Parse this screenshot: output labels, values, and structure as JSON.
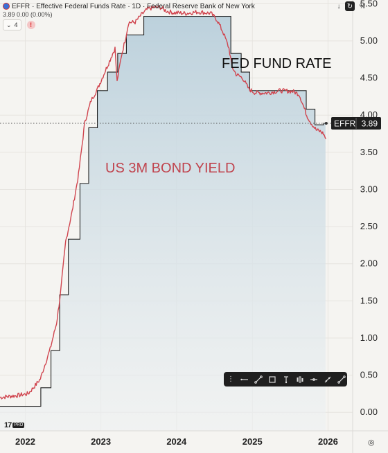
{
  "header": {
    "symbol": "EFFR",
    "title": "· Effective Federal Funds Rate · 1D · Federal Reserve Bank of New York",
    "price_line": "3.89  0.00 (0.00%)",
    "indicator_count": "4",
    "warning": "!"
  },
  "toolbar": {
    "download_icon": "download-icon",
    "reload_icon": "reload-icon",
    "percent": "%"
  },
  "annotations": {
    "fed_fund_rate": "FED FUND RATE",
    "bond_yield": "US 3M BOND YIELD"
  },
  "price_tag": {
    "symbol": "EFFR",
    "value": "3.89"
  },
  "drawing_toolbar": {
    "tools": [
      "drag-handle-icon",
      "horizontal-line-icon",
      "trend-line-icon",
      "rectangle-icon",
      "text-icon",
      "candles-icon",
      "ray-icon",
      "measure-icon",
      "ruler-icon"
    ]
  },
  "colors": {
    "background": "#f5f4f1",
    "step_line": "#1f1f1f",
    "bond_line": "#d0444e",
    "area_top": "#b9cfdb",
    "area_bottom": "#edf0f1",
    "grid": "#e6e4e0",
    "tag_bg": "#1f1f1f"
  },
  "chart_data": {
    "type": "line",
    "y_axis_side": "right",
    "ylim": [
      -0.25,
      5.55
    ],
    "yticks": [
      "5.50",
      "5.00",
      "4.50",
      "4.00",
      "3.50",
      "3.00",
      "2.50",
      "2.00",
      "1.50",
      "1.00",
      "0.50",
      "0.00"
    ],
    "xlim": [
      "2021-09-01",
      "2026-04-30"
    ],
    "xticks": [
      "2022",
      "2023",
      "2024",
      "2025",
      "2026"
    ],
    "grid": true,
    "current_value": 3.89,
    "series": [
      {
        "name": "EFFR",
        "type": "step-area",
        "points": [
          [
            "2021-09-01",
            0.08
          ],
          [
            "2022-03-17",
            0.33
          ],
          [
            "2022-05-05",
            0.83
          ],
          [
            "2022-06-16",
            1.58
          ],
          [
            "2022-07-28",
            2.33
          ],
          [
            "2022-09-22",
            3.08
          ],
          [
            "2022-11-03",
            3.83
          ],
          [
            "2022-12-15",
            4.33
          ],
          [
            "2023-02-02",
            4.58
          ],
          [
            "2023-03-23",
            4.83
          ],
          [
            "2023-05-04",
            5.08
          ],
          [
            "2023-07-27",
            5.33
          ],
          [
            "2024-09-19",
            4.83
          ],
          [
            "2024-11-08",
            4.58
          ],
          [
            "2024-12-19",
            4.33
          ],
          [
            "2025-09-18",
            4.08
          ],
          [
            "2025-10-30",
            3.87
          ],
          [
            "2025-12-11",
            3.89
          ],
          [
            "2025-12-20",
            3.89
          ]
        ]
      },
      {
        "name": "US 3M bond yield",
        "type": "line",
        "points": [
          [
            "2021-09-01",
            0.2
          ],
          [
            "2021-12-01",
            0.23
          ],
          [
            "2022-01-15",
            0.25
          ],
          [
            "2022-02-15",
            0.35
          ],
          [
            "2022-03-15",
            0.45
          ],
          [
            "2022-04-01",
            0.6
          ],
          [
            "2022-05-01",
            0.85
          ],
          [
            "2022-06-01",
            1.2
          ],
          [
            "2022-06-20",
            1.6
          ],
          [
            "2022-07-15",
            2.3
          ],
          [
            "2022-08-15",
            2.7
          ],
          [
            "2022-09-15",
            3.2
          ],
          [
            "2022-10-15",
            3.9
          ],
          [
            "2022-11-15",
            4.2
          ],
          [
            "2022-12-15",
            4.35
          ],
          [
            "2023-01-15",
            4.55
          ],
          [
            "2023-02-15",
            4.75
          ],
          [
            "2023-03-10",
            4.9
          ],
          [
            "2023-03-20",
            4.45
          ],
          [
            "2023-04-10",
            4.8
          ],
          [
            "2023-05-01",
            5.05
          ],
          [
            "2023-05-15",
            5.25
          ],
          [
            "2023-06-15",
            5.25
          ],
          [
            "2023-07-15",
            5.35
          ],
          [
            "2023-08-15",
            5.43
          ],
          [
            "2023-09-15",
            5.45
          ],
          [
            "2023-10-15",
            5.45
          ],
          [
            "2023-11-15",
            5.4
          ],
          [
            "2023-12-15",
            5.38
          ],
          [
            "2024-02-15",
            5.37
          ],
          [
            "2024-04-15",
            5.39
          ],
          [
            "2024-06-15",
            5.37
          ],
          [
            "2024-07-15",
            5.28
          ],
          [
            "2024-08-15",
            5.1
          ],
          [
            "2024-09-10",
            4.9
          ],
          [
            "2024-09-25",
            4.65
          ],
          [
            "2024-10-15",
            4.55
          ],
          [
            "2024-11-15",
            4.5
          ],
          [
            "2024-12-15",
            4.35
          ],
          [
            "2025-01-15",
            4.3
          ],
          [
            "2025-03-15",
            4.3
          ],
          [
            "2025-05-15",
            4.33
          ],
          [
            "2025-07-15",
            4.32
          ],
          [
            "2025-08-15",
            4.28
          ],
          [
            "2025-09-01",
            4.15
          ],
          [
            "2025-09-20",
            4.0
          ],
          [
            "2025-10-10",
            3.9
          ],
          [
            "2025-11-05",
            3.8
          ],
          [
            "2025-11-25",
            3.78
          ],
          [
            "2025-12-10",
            3.75
          ],
          [
            "2025-12-22",
            3.68
          ]
        ]
      }
    ]
  }
}
